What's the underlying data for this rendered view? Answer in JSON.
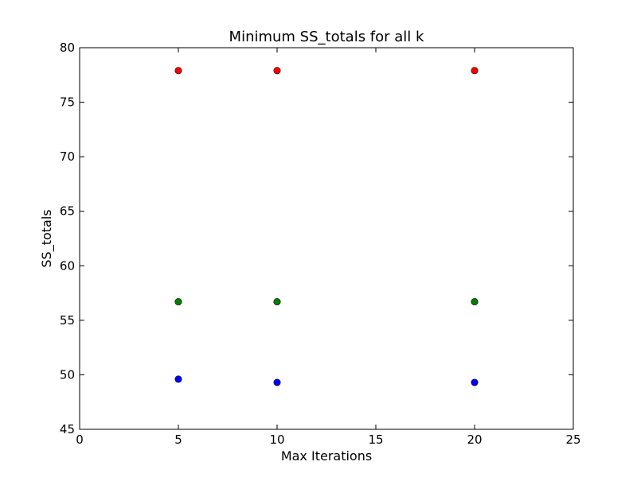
{
  "chart_data": {
    "type": "scatter",
    "title": "Minimum SS_totals for all k",
    "xlabel": "Max Iterations",
    "ylabel": "SS_totals",
    "xlim": [
      0,
      25
    ],
    "ylim": [
      45,
      80
    ],
    "xticks": [
      0,
      5,
      10,
      15,
      20,
      25
    ],
    "yticks": [
      45,
      50,
      55,
      60,
      65,
      70,
      75,
      80
    ],
    "grid": false,
    "legend": "none",
    "series": [
      {
        "color": "#ff0000",
        "x": [
          5,
          10,
          20
        ],
        "y": [
          77.9,
          77.9,
          77.9
        ]
      },
      {
        "color": "#008000",
        "x": [
          5,
          10,
          20
        ],
        "y": [
          56.7,
          56.7,
          56.7
        ]
      },
      {
        "color": "#0000ff",
        "x": [
          5,
          10,
          20
        ],
        "y": [
          49.6,
          49.3,
          49.3
        ]
      }
    ]
  }
}
